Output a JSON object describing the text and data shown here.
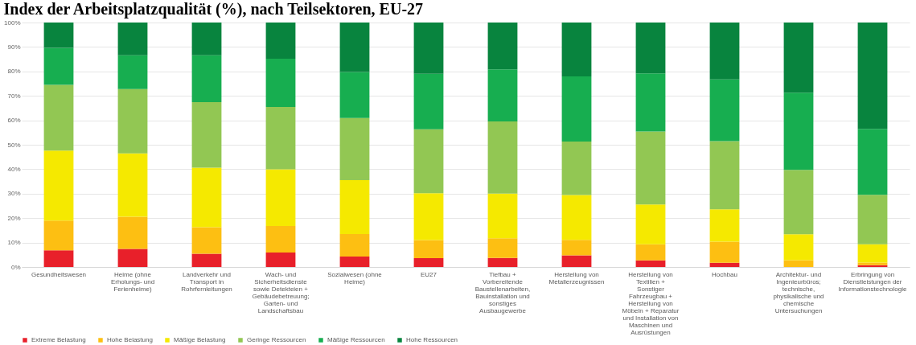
{
  "chart_data": {
    "type": "bar",
    "title": "Index der Arbeitsplatzqualität (%), nach Teilsektoren, EU-27",
    "categories": [
      "Gesundheitswesen",
      "Heime (ohne Erholungs- und Ferienheime)",
      "Landverkehr und Transport in Rohrfernleitungen",
      "Wach- und Sicherheitsdienste sowie Detekteien + Gebäudebetreuung; Garten- und Landschaftsbau",
      "Sozialwesen (ohne Heime)",
      "EU27",
      "Tiefbau + Vorbereitende Baustellenarbeiten, Bauinstallation und sonstiges Ausbaugewerbe",
      "Herstellung von Metallerzeugnissen",
      "Herstellung von Textilien + Sonstiger Fahrzeugbau + Herstellung von Möbeln + Reparatur und Installation von Maschinen und Ausrüstungen",
      "Hochbau",
      "Architektur- und Ingenieurbüros; technische, physikalische und chemische Untersuchungen",
      "Erbringung von Dienstleistungen der Informationstechnologie"
    ],
    "series": [
      {
        "name": "Extreme Belastung",
        "color": "#e8202a",
        "values": [
          6.8,
          7.4,
          5.4,
          5.9,
          4.3,
          3.6,
          3.7,
          4.8,
          2.7,
          1.7,
          0,
          0.7
        ]
      },
      {
        "name": "Hohe Belastung",
        "color": "#fdbf12",
        "values": [
          12.2,
          13.2,
          10.9,
          10.9,
          9.2,
          7.4,
          8.1,
          6.3,
          6.6,
          8.7,
          2.8,
          1.1
        ]
      },
      {
        "name": "Mäßige Belastung",
        "color": "#f5e900",
        "values": [
          28.6,
          25.9,
          24.3,
          23.2,
          22.0,
          19.2,
          18.2,
          18.3,
          16.3,
          13.2,
          10.6,
          7.5
        ]
      },
      {
        "name": "Geringe Ressourcen",
        "color": "#92c753",
        "values": [
          26.9,
          26.3,
          26.8,
          25.5,
          25.4,
          26.1,
          29.5,
          21.9,
          29.8,
          27.9,
          26.3,
          20.2
        ]
      },
      {
        "name": "Mäßige Ressourcen",
        "color": "#17ae50",
        "values": [
          15.1,
          13.8,
          19.2,
          19.7,
          18.9,
          22.7,
          21.3,
          26.7,
          23.8,
          25.2,
          31.6,
          27.0
        ]
      },
      {
        "name": "Hohe Ressourcen",
        "color": "#08843e",
        "values": [
          10.4,
          13.4,
          13.4,
          14.8,
          20.2,
          21.0,
          19.2,
          22.0,
          20.8,
          23.3,
          28.7,
          43.5
        ]
      }
    ],
    "stacked": true,
    "ylim": [
      0,
      100
    ],
    "yticks": [
      {
        "value": 0,
        "label": "0%"
      },
      {
        "value": 10,
        "label": "10%"
      },
      {
        "value": 20,
        "label": "20%"
      },
      {
        "value": 30,
        "label": "30%"
      },
      {
        "value": 40,
        "label": "40%"
      },
      {
        "value": 50,
        "label": "50%"
      },
      {
        "value": 60,
        "label": "60%"
      },
      {
        "value": 70,
        "label": "70%"
      },
      {
        "value": 80,
        "label": "80%"
      },
      {
        "value": 90,
        "label": "90%"
      },
      {
        "value": 100,
        "label": "100%"
      }
    ],
    "grid": "y",
    "legend": "bottom"
  }
}
